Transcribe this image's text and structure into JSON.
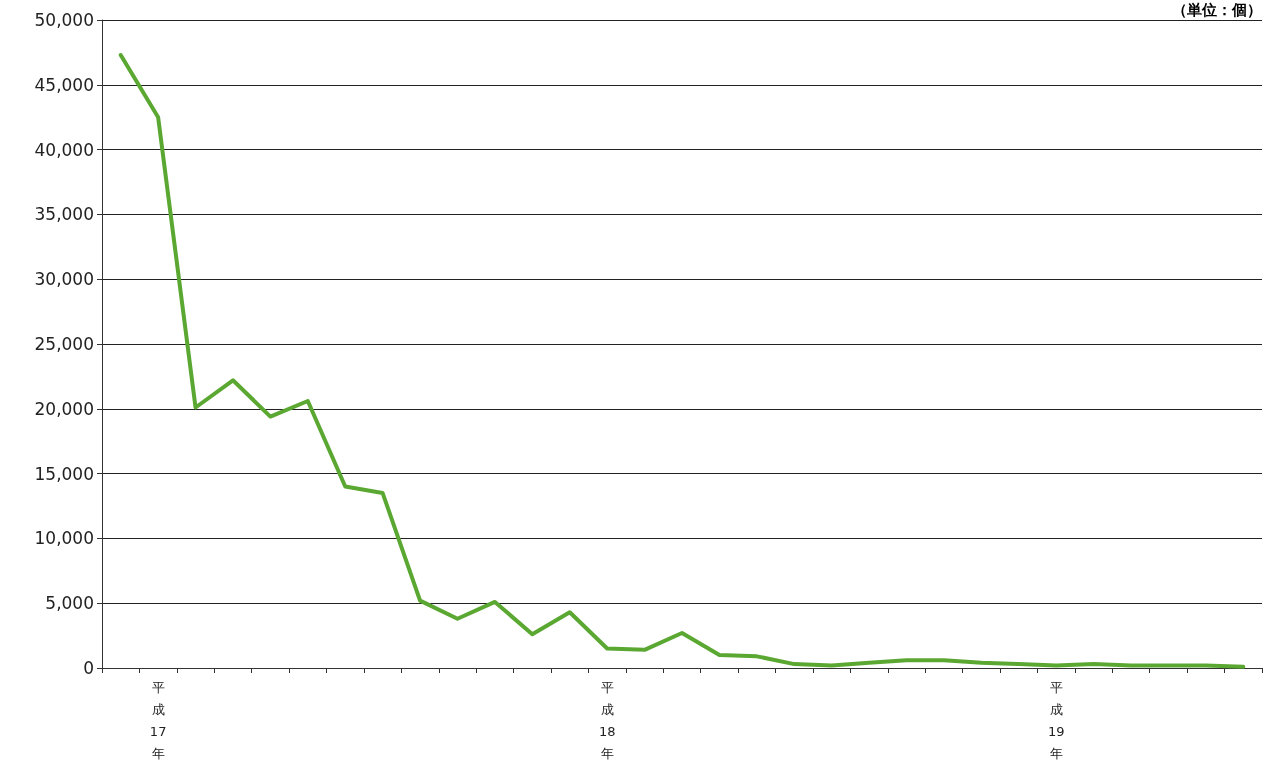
{
  "chart_data": {
    "type": "line",
    "categories": [
      null,
      "平成17年",
      null,
      null,
      null,
      null,
      null,
      null,
      null,
      null,
      null,
      null,
      null,
      "平成18年",
      null,
      null,
      null,
      null,
      null,
      null,
      null,
      null,
      null,
      null,
      null,
      "平成19年",
      null,
      null,
      null,
      null,
      null
    ],
    "series": [
      {
        "color": "#5aa832",
        "values": [
          47300,
          42500,
          20100,
          22200,
          19400,
          20600,
          14000,
          13500,
          5200,
          3800,
          5100,
          2600,
          4300,
          1500,
          1400,
          2700,
          1000,
          900,
          300,
          200,
          400,
          600,
          600,
          400,
          300,
          200,
          300,
          200,
          200,
          200,
          100
        ]
      }
    ],
    "ylim": [
      0,
      50000
    ],
    "yticks": [
      0,
      {
        "value": 5000,
        "label": "5,000"
      },
      {
        "value": 10000,
        "label": "10,000"
      },
      {
        "value": 15000,
        "label": "15,000"
      },
      {
        "value": 20000,
        "label": "20,000"
      },
      {
        "value": 25000,
        "label": "25,000"
      },
      {
        "value": 30000,
        "label": "30,000"
      },
      {
        "value": 35000,
        "label": "35,000"
      },
      {
        "value": 40000,
        "label": "40,000"
      },
      {
        "value": 45000,
        "label": "45,000"
      },
      {
        "value": 50000,
        "label": "50,000"
      }
    ],
    "grid": "y",
    "marker": "none",
    "line_style": "solid",
    "annotations": [
      "（単位：個）"
    ]
  }
}
